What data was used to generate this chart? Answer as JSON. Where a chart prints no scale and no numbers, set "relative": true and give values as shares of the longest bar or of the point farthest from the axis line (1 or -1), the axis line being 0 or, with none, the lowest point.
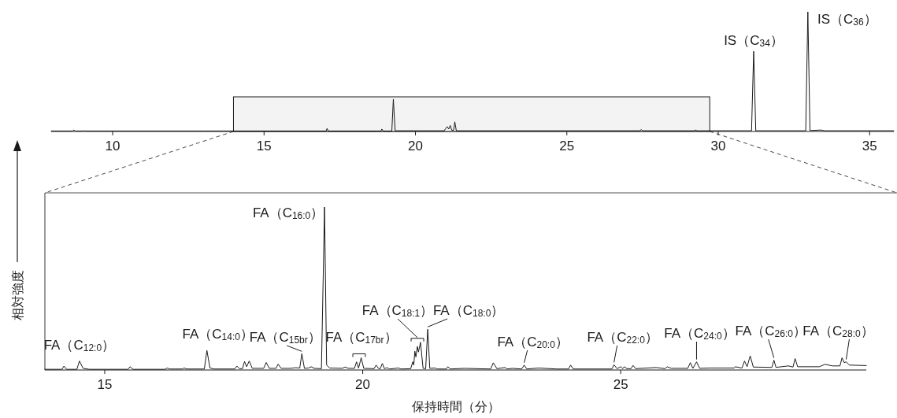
{
  "chart_data": [
    {
      "type": "line",
      "relative": true,
      "xlim": [
        7.97,
        35.8
      ],
      "xticks": [
        10,
        15,
        20,
        25,
        30,
        35
      ],
      "series": [
        {
          "color": "#1a1a1a",
          "x": [
            7.97,
            8.68,
            8.72,
            8.76,
            9.0,
            9.02,
            9.05,
            13,
            17.05,
            17.08,
            17.12,
            18.86,
            18.89,
            18.93,
            19.22,
            19.27,
            19.33,
            20.95,
            21.0,
            21.05,
            21.1,
            21.15,
            21.2,
            21.26,
            21.3,
            21.35,
            27.4,
            27.46,
            27.5,
            29.2,
            29.25,
            29.3,
            31.1,
            31.17,
            31.24,
            32.89,
            32.96,
            33.03,
            33.4,
            33.5,
            35.8
          ],
          "values": [
            0.004,
            0.004,
            0.012,
            0.004,
            0.004,
            0.008,
            0.004,
            0.004,
            0.004,
            0.025,
            0.004,
            0.004,
            0.02,
            0.004,
            0.004,
            0.27,
            0.006,
            0.006,
            0.025,
            0.04,
            0.02,
            0.05,
            0.01,
            0.01,
            0.08,
            0.006,
            0.006,
            0.015,
            0.006,
            0.006,
            0.012,
            0.006,
            0.006,
            0.67,
            0.006,
            0.006,
            1,
            0.008,
            0.012,
            0.006,
            0.006
          ]
        }
      ],
      "bands": [
        {
          "axis": "x",
          "from": 13.99,
          "to": 29.72,
          "color": "#f3f3f3"
        }
      ],
      "annotations": [
        {
          "text": "IS（C$_{34}$）",
          "x": 31.17,
          "y": 0.67
        },
        {
          "text": "IS（C$_{36}$）",
          "x": 32.96,
          "y": 1
        }
      ]
    },
    {
      "type": "line",
      "relative": true,
      "xlim": [
        13.84,
        29.76
      ],
      "xticks": [
        15,
        20,
        25
      ],
      "xlabel": "保持時間（分）",
      "ylabel": "相対強度",
      "series": [
        {
          "color": "#1a1a1a",
          "x": [
            13.84,
            14.17,
            14.21,
            14.26,
            14.46,
            14.51,
            14.58,
            14.7,
            15.45,
            15.49,
            15.55,
            16.17,
            16.21,
            16.26,
            16.5,
            16.54,
            16.59,
            16.93,
            16.98,
            17.04,
            17.12,
            17.52,
            17.56,
            17.61,
            17.67,
            17.71,
            17.75,
            17.8,
            17.86,
            18.08,
            18.13,
            18.19,
            18.32,
            18.36,
            18.42,
            18.6,
            18.7,
            18.78,
            18.82,
            18.87,
            18.95,
            19.0,
            19.06,
            19.2,
            19.26,
            19.3,
            19.36,
            19.6,
            19.66,
            19.72,
            19.84,
            19.88,
            19.92,
            19.97,
            20.02,
            20.22,
            20.26,
            20.31,
            20.34,
            20.38,
            20.42,
            20.47,
            20.52,
            20.69,
            20.75,
            20.93,
            20.97,
            20.99,
            21.01,
            21.03,
            21.06,
            21.08,
            21.12,
            21.17,
            21.22,
            21.26,
            21.3,
            21.4,
            21.45,
            21.62,
            21.65,
            21.7,
            21.97,
            22.48,
            22.53,
            22.6,
            22.76,
            22.8,
            22.9,
            23.08,
            23.13,
            23.18,
            23.41,
            23.76,
            23.99,
            24.03,
            24.08,
            24.83,
            24.87,
            24.93,
            25.0,
            25.04,
            25.07,
            25.12,
            25.2,
            25.24,
            25.29,
            25.69,
            25.86,
            25.9,
            25.98,
            26.3,
            26.35,
            26.4,
            26.47,
            26.53,
            26.74,
            27.2,
            27.22,
            27.35,
            27.4,
            27.45,
            27.51,
            27.57,
            27.93,
            27.97,
            28.01,
            28.25,
            28.34,
            28.38,
            28.43,
            28.85,
            28.96,
            29.1,
            29.25,
            29.29,
            29.33,
            29.37,
            29.43,
            29.76
          ],
          "values": [
            0.004,
            0.004,
            0.024,
            0.004,
            0.004,
            0.055,
            0.01,
            0.004,
            0.004,
            0.02,
            0.004,
            0.004,
            0.012,
            0.006,
            0.006,
            0.012,
            0.006,
            0.006,
            0.12,
            0.012,
            0.006,
            0.006,
            0.024,
            0.008,
            0.008,
            0.052,
            0.02,
            0.055,
            0.01,
            0.01,
            0.046,
            0.01,
            0.01,
            0.036,
            0.01,
            0.01,
            0.014,
            0.012,
            0.1,
            0.01,
            0.012,
            0.02,
            0.01,
            0.008,
            1,
            0.03,
            0.012,
            0.01,
            0.018,
            0.01,
            0.01,
            0.05,
            0.012,
            0.075,
            0.01,
            0.008,
            0.03,
            0.008,
            0.008,
            0.04,
            0.008,
            0.014,
            0.006,
            0.012,
            0.006,
            0.008,
            0.05,
            0.03,
            0.115,
            0.08,
            0.145,
            0.11,
            0.17,
            0.01,
            0.008,
            0.25,
            0.01,
            0.012,
            0.006,
            0.006,
            0.02,
            0.006,
            0.01,
            0.006,
            0.044,
            0.008,
            0.015,
            0.006,
            0.01,
            0.006,
            0.03,
            0.006,
            0.012,
            0.006,
            0.006,
            0.03,
            0.006,
            0.006,
            0.032,
            0.008,
            0.02,
            0.008,
            0.02,
            0.008,
            0.008,
            0.028,
            0.008,
            0.015,
            0.008,
            0.02,
            0.01,
            0.01,
            0.045,
            0.01,
            0.05,
            0.01,
            0.012,
            0.012,
            0.02,
            0.012,
            0.055,
            0.02,
            0.087,
            0.018,
            0.016,
            0.06,
            0.016,
            0.025,
            0.018,
            0.07,
            0.02,
            0.02,
            0.035,
            0.025,
            0.025,
            0.075,
            0.045,
            0.05,
            0.03,
            0.027
          ]
        }
      ],
      "annotations": [
        {
          "text": "FA（C$_{12:0}$）",
          "x": 14.51,
          "y": 0.055
        },
        {
          "text": "FA（C$_{14:0}$）",
          "x": 16.98,
          "y": 0.12
        },
        {
          "text": "FA（C$_{15br}$）",
          "x": 18.82,
          "y": 0.1
        },
        {
          "text": "FA（C$_{16:0}$）",
          "x": 19.26,
          "y": 1
        },
        {
          "text": "FA（C$_{17br}$）",
          "x": 19.93,
          "y": 0.075
        },
        {
          "text": "FA（C$_{18:1}$）",
          "x": 21.06,
          "y": 0.17
        },
        {
          "text": "FA（C$_{18:0}$）",
          "x": 21.26,
          "y": 0.25
        },
        {
          "text": "FA（C$_{20:0}$）",
          "x": 23.13,
          "y": 0.03
        },
        {
          "text": "FA（C$_{22:0}$）",
          "x": 24.87,
          "y": 0.032
        },
        {
          "text": "FA（C$_{24:0}$）",
          "x": 26.47,
          "y": 0.05
        },
        {
          "text": "FA（C$_{26:0}$）",
          "x": 27.97,
          "y": 0.06
        },
        {
          "text": "FA（C$_{28:0}$）",
          "x": 29.37,
          "y": 0.05
        }
      ]
    }
  ]
}
